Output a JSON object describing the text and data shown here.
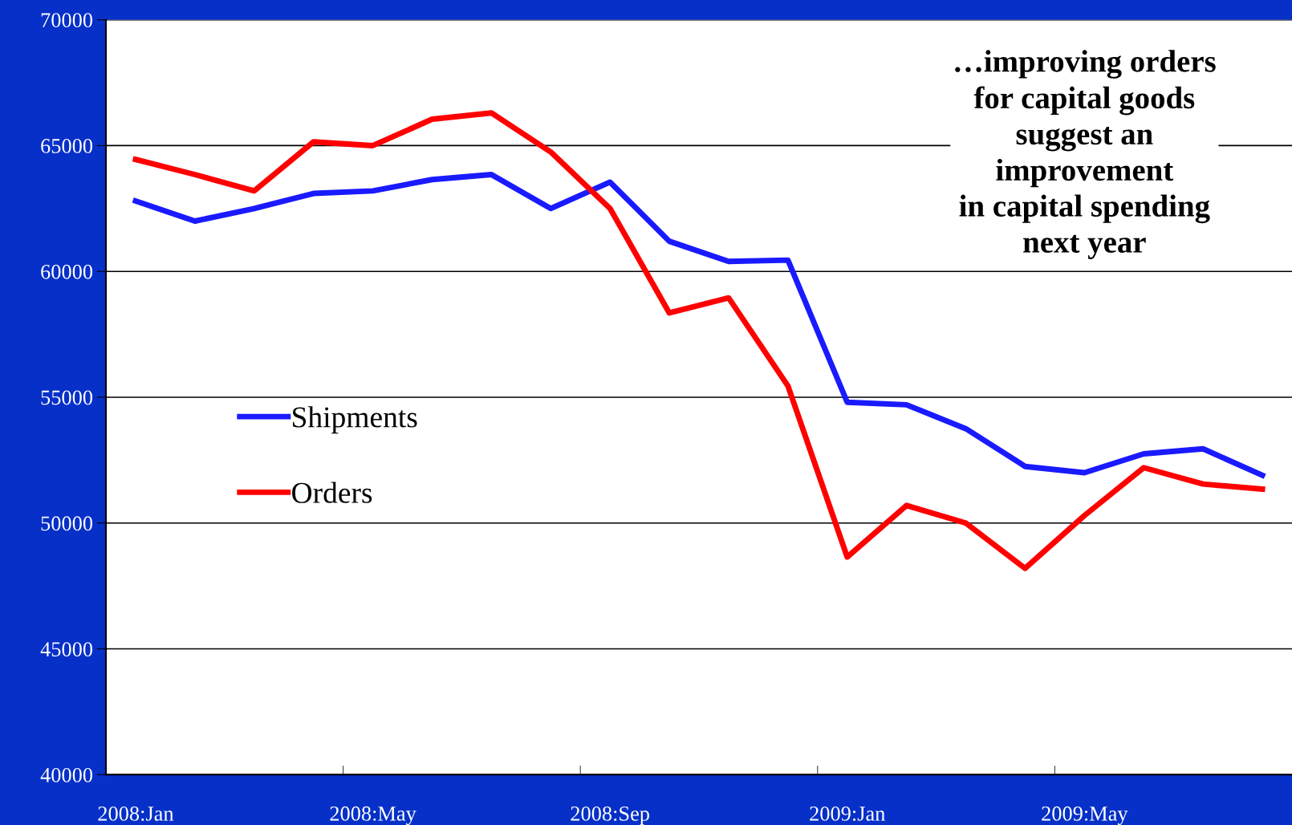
{
  "chart_data": {
    "type": "line",
    "categories": [
      "2008:Jan",
      null,
      null,
      null,
      "2008:May",
      null,
      null,
      null,
      "2008:Sep",
      null,
      null,
      null,
      "2009:Jan",
      null,
      null,
      null,
      "2009:May",
      null,
      null,
      null
    ],
    "series": [
      {
        "name": "Shipments",
        "color": "#1a1aff",
        "values": [
          62800,
          62000,
          62500,
          63100,
          63200,
          63650,
          63850,
          62500,
          63550,
          61200,
          60400,
          60450,
          54800,
          54700,
          53750,
          52250,
          52000,
          52750,
          52950,
          51900
        ]
      },
      {
        "name": "Orders",
        "color": "#ff0000",
        "values": [
          64450,
          63850,
          63200,
          65150,
          65000,
          66050,
          66300,
          64750,
          62500,
          58350,
          58950,
          55450,
          48650,
          50700,
          50000,
          48200,
          50300,
          52200,
          51550,
          51350
        ]
      }
    ],
    "ylim": [
      40000,
      70000
    ],
    "yticks": [
      40000,
      45000,
      50000,
      55000,
      60000,
      65000,
      70000
    ],
    "grid": "y",
    "legend": "left",
    "marker": "none",
    "line_style": "solid",
    "annotations": [
      "…improving orders\nfor capital goods\nsuggest an\nimprovement\nin capital spending\nnext year"
    ]
  }
}
